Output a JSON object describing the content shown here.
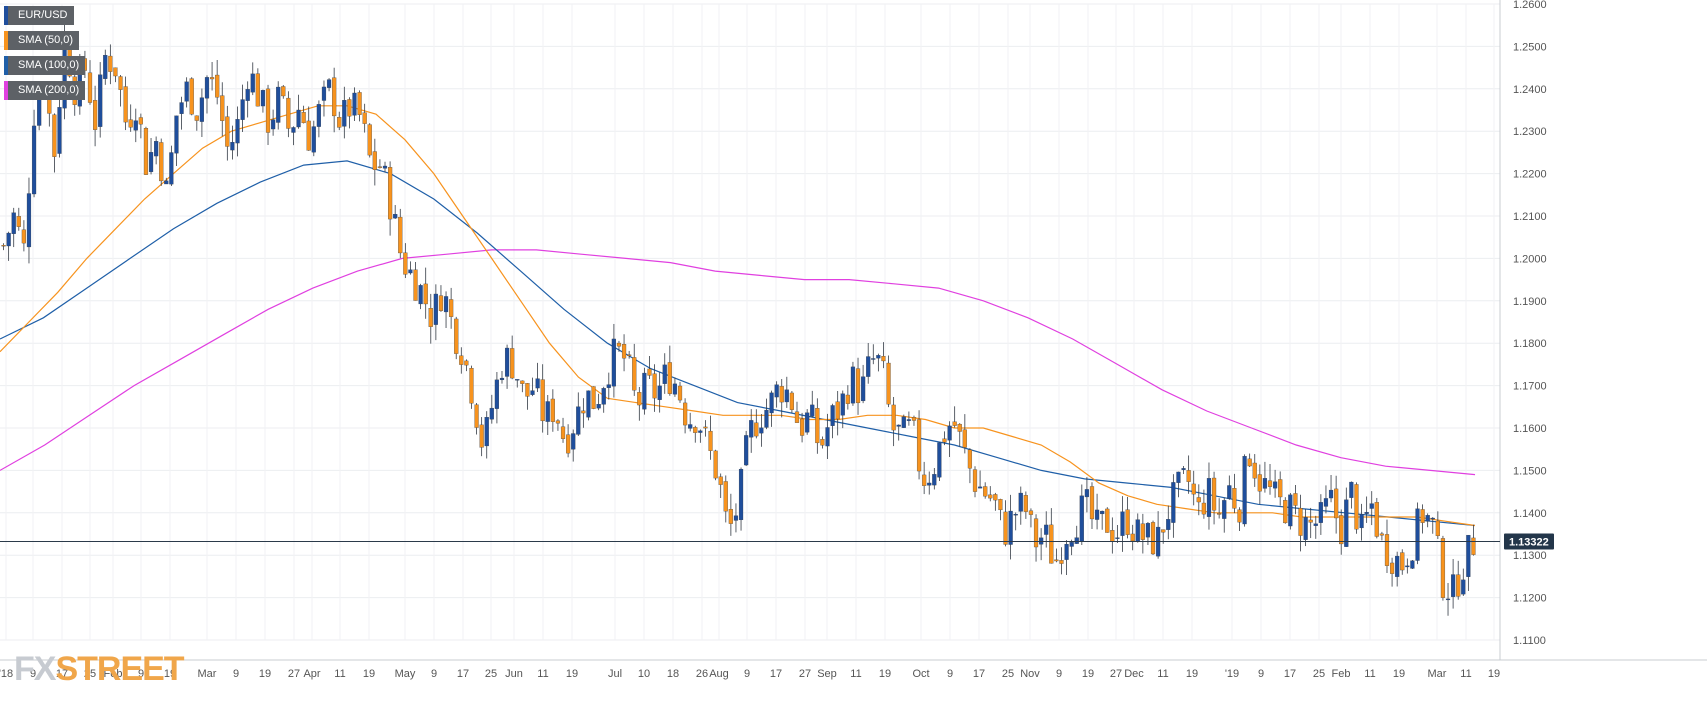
{
  "chart_data": {
    "type": "candlestick",
    "title": "",
    "symbol": "EUR/USD",
    "last_price": "1.13322",
    "ylim": [
      1.11,
      1.26
    ],
    "y_ticks": [
      "1.1100",
      "1.1200",
      "1.1300",
      "1.1400",
      "1.1500",
      "1.1600",
      "1.1700",
      "1.1800",
      "1.1900",
      "1.2000",
      "1.2100",
      "1.2200",
      "1.2300",
      "1.2400",
      "1.2500",
      "1.2600"
    ],
    "x_ticks": [
      "'18",
      "9",
      "17",
      "25",
      "Feb",
      "9",
      "19",
      "Mar",
      "9",
      "19",
      "27",
      "Apr",
      "11",
      "19",
      "May",
      "9",
      "17",
      "25",
      "Jun",
      "11",
      "19",
      "Jul",
      "10",
      "18",
      "26",
      "Aug",
      "9",
      "17",
      "27",
      "Sep",
      "11",
      "19",
      "Oct",
      "9",
      "17",
      "25",
      "Nov",
      "9",
      "19",
      "27",
      "Dec",
      "11",
      "19",
      "'19",
      "9",
      "17",
      "25",
      "Feb",
      "11",
      "19",
      "Mar",
      "11",
      "19"
    ],
    "legend": [
      {
        "name": "EUR/USD",
        "color": "#1f4e9c"
      },
      {
        "name": "SMA (50,0)",
        "color": "#f7931e"
      },
      {
        "name": "SMA (100,0)",
        "color": "#1f5fa8"
      },
      {
        "name": "SMA (200,0)",
        "color": "#e040e0"
      }
    ],
    "anchors": {
      "close": [
        1.203,
        1.21,
        1.202,
        1.235,
        1.242,
        1.225,
        1.252,
        1.24,
        1.245,
        1.232,
        1.248,
        1.245,
        1.232,
        1.237,
        1.222,
        1.228,
        1.215,
        1.235,
        1.24,
        1.235,
        1.243,
        1.238,
        1.225,
        1.232,
        1.245,
        1.238,
        1.232,
        1.238,
        1.23,
        1.236,
        1.228,
        1.235,
        1.24,
        1.232,
        1.236,
        1.233,
        1.222,
        1.222,
        1.212,
        1.2,
        1.196,
        1.192,
        1.186,
        1.193,
        1.184,
        1.178,
        1.168,
        1.155,
        1.167,
        1.177,
        1.175,
        1.167,
        1.17,
        1.162,
        1.165,
        1.157,
        1.162,
        1.168,
        1.166,
        1.173,
        1.178,
        1.176,
        1.165,
        1.17,
        1.168,
        1.173,
        1.17,
        1.162,
        1.163,
        1.155,
        1.149,
        1.135,
        1.142,
        1.158,
        1.163,
        1.165,
        1.17,
        1.168,
        1.16,
        1.163,
        1.155,
        1.162,
        1.165,
        1.172,
        1.168,
        1.176,
        1.175,
        1.16,
        1.158,
        1.16,
        1.148,
        1.15,
        1.158,
        1.162,
        1.155,
        1.148,
        1.145,
        1.143,
        1.135,
        1.14,
        1.142,
        1.133,
        1.135,
        1.128,
        1.135,
        1.138,
        1.142,
        1.136,
        1.138,
        1.135,
        1.139,
        1.135,
        1.134,
        1.133,
        1.14,
        1.145,
        1.148,
        1.14,
        1.145,
        1.139,
        1.146,
        1.141,
        1.155,
        1.148,
        1.145,
        1.142,
        1.141,
        1.138,
        1.137,
        1.138,
        1.143,
        1.136,
        1.145,
        1.135,
        1.142,
        1.133,
        1.13,
        1.128,
        1.133,
        1.14,
        1.137,
        1.124,
        1.121,
        1.128,
        1.133
      ],
      "sma50": [
        1.178,
        1.185,
        1.192,
        1.2,
        1.207,
        1.214,
        1.22,
        1.226,
        1.23,
        1.232,
        1.234,
        1.236,
        1.236,
        1.234,
        1.228,
        1.22,
        1.21,
        1.2,
        1.19,
        1.18,
        1.172,
        1.167,
        1.166,
        1.165,
        1.164,
        1.163,
        1.163,
        1.163,
        1.162,
        1.162,
        1.163,
        1.163,
        1.162,
        1.16,
        1.16,
        1.158,
        1.156,
        1.152,
        1.147,
        1.144,
        1.142,
        1.141,
        1.14,
        1.14,
        1.14,
        1.139,
        1.139,
        1.139,
        1.139,
        1.139,
        1.138,
        1.137
      ],
      "sma100": [
        1.181,
        1.186,
        1.193,
        1.2,
        1.207,
        1.213,
        1.218,
        1.222,
        1.223,
        1.22,
        1.214,
        1.206,
        1.197,
        1.188,
        1.18,
        1.174,
        1.17,
        1.166,
        1.164,
        1.162,
        1.16,
        1.158,
        1.156,
        1.153,
        1.15,
        1.148,
        1.147,
        1.146,
        1.144,
        1.142,
        1.141,
        1.14,
        1.139,
        1.138,
        1.137
      ],
      "sma200": [
        1.15,
        1.156,
        1.163,
        1.17,
        1.176,
        1.182,
        1.188,
        1.193,
        1.197,
        1.2,
        1.201,
        1.202,
        1.202,
        1.201,
        1.2,
        1.199,
        1.197,
        1.196,
        1.195,
        1.195,
        1.194,
        1.193,
        1.19,
        1.186,
        1.181,
        1.175,
        1.169,
        1.164,
        1.16,
        1.156,
        1.153,
        1.151,
        1.15,
        1.149
      ]
    },
    "sma_extents": {
      "sma50": [
        0,
        1475
      ],
      "sma100": [
        0,
        1475
      ],
      "sma200": [
        0,
        1475
      ]
    }
  }
}
